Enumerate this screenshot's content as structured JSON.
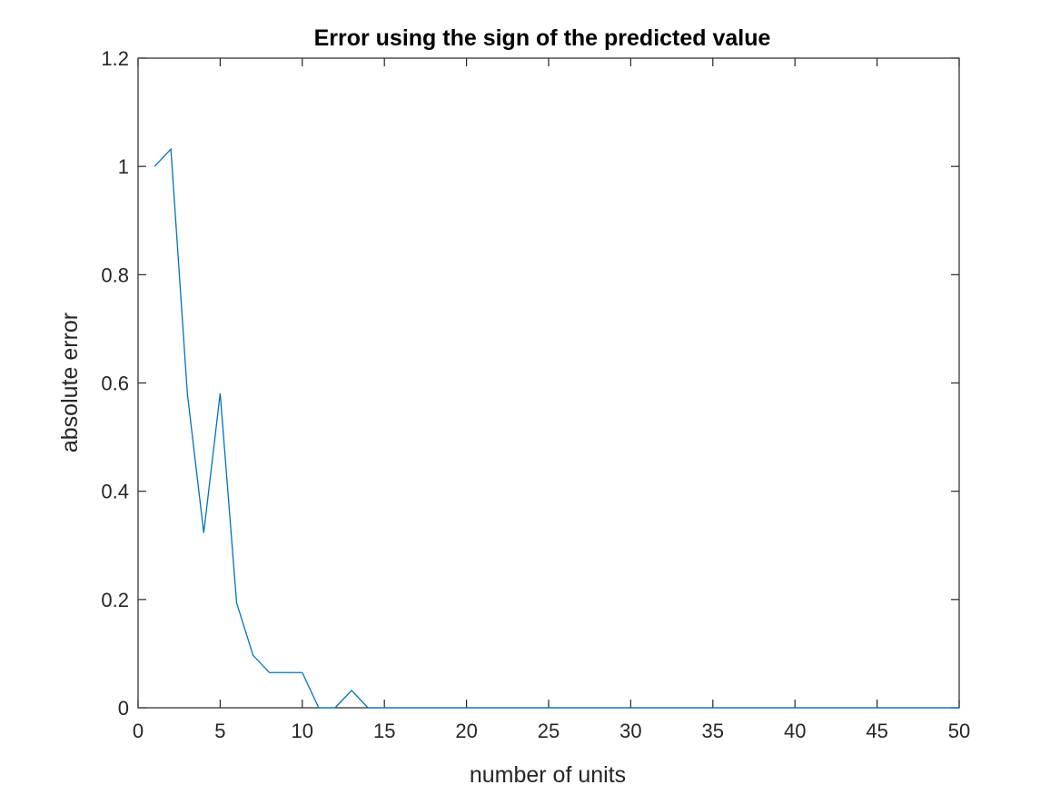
{
  "chart_data": {
    "type": "line",
    "title": "Error using the sign of the predicted value",
    "xlabel": "number of units",
    "ylabel": "absolute error",
    "xlim": [
      0,
      50
    ],
    "ylim": [
      0,
      1.2
    ],
    "xticks": [
      0,
      5,
      10,
      15,
      20,
      25,
      30,
      35,
      40,
      45,
      50
    ],
    "yticks": [
      0,
      0.2,
      0.4,
      0.6,
      0.8,
      1,
      1.2
    ],
    "xtick_labels": [
      "0",
      "5",
      "10",
      "15",
      "20",
      "25",
      "30",
      "35",
      "40",
      "45",
      "50"
    ],
    "ytick_labels": [
      "0",
      "0.2",
      "0.4",
      "0.6",
      "0.8",
      "1",
      "1.2"
    ],
    "grid": false,
    "box": true,
    "line_color": "#0072BD",
    "axis_color": "#262626",
    "series": [
      {
        "x": [
          1,
          2,
          3,
          4,
          5,
          6,
          7,
          8,
          9,
          10,
          11,
          12,
          13,
          14,
          15,
          16,
          17,
          18,
          19,
          20,
          21,
          22,
          23,
          24,
          25,
          26,
          27,
          28,
          29,
          30,
          31,
          32,
          33,
          34,
          35,
          36,
          37,
          38,
          39,
          40,
          41,
          42,
          43,
          44,
          45,
          46,
          47,
          48,
          49,
          50
        ],
        "y": [
          1.0,
          1.032,
          0.581,
          0.323,
          0.581,
          0.194,
          0.097,
          0.065,
          0.065,
          0.065,
          0,
          0,
          0.032,
          0,
          0,
          0,
          0,
          0,
          0,
          0,
          0,
          0,
          0,
          0,
          0,
          0,
          0,
          0,
          0,
          0,
          0,
          0,
          0,
          0,
          0,
          0,
          0,
          0,
          0,
          0,
          0,
          0,
          0,
          0,
          0,
          0,
          0,
          0,
          0,
          0
        ]
      }
    ]
  }
}
